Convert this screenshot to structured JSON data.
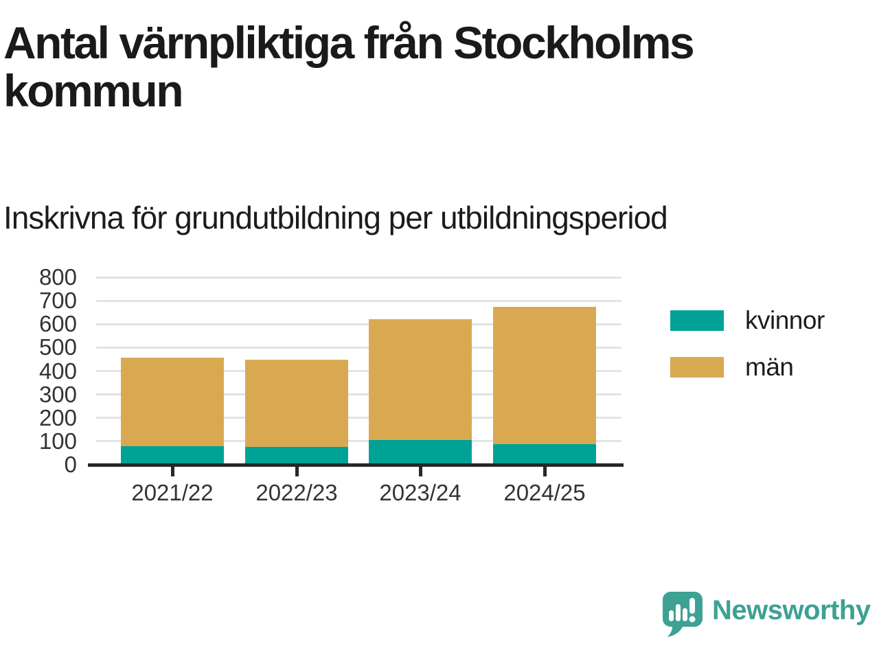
{
  "header": {
    "title": "Antal värnpliktiga från Stockholms kommun",
    "subtitle": "Inskrivna för grundutbildning per utbildningsperiod"
  },
  "chart_data": {
    "type": "bar",
    "stacked": true,
    "categories": [
      "2021/22",
      "2022/23",
      "2023/24",
      "2024/25"
    ],
    "series": [
      {
        "name": "kvinnor",
        "color": "#00a295",
        "values": [
          78,
          77,
          106,
          87
        ]
      },
      {
        "name": "män",
        "color": "#d9a952",
        "values": [
          380,
          371,
          514,
          588
        ]
      }
    ],
    "totals": [
      458,
      448,
      620,
      675
    ],
    "title": "Antal värnpliktiga från Stockholms kommun",
    "subtitle": "Inskrivna för grundutbildning per utbildningsperiod",
    "xlabel": "",
    "ylabel": "",
    "ylim": [
      0,
      800
    ],
    "ytick_step": 100,
    "ytick_labels": [
      "0",
      "100",
      "200",
      "300",
      "400",
      "500",
      "600",
      "700",
      "800"
    ],
    "grid": true,
    "legend_position": "right"
  },
  "footer": {
    "brand": "Newsworthy"
  },
  "colors": {
    "kvinnor": "#00a295",
    "man": "#d9a952",
    "brand_teal": "#3da193",
    "title_text": "#1a1a1a",
    "axis_text": "#333333",
    "gridline": "#e3e3e3",
    "axis_line": "#272727"
  }
}
